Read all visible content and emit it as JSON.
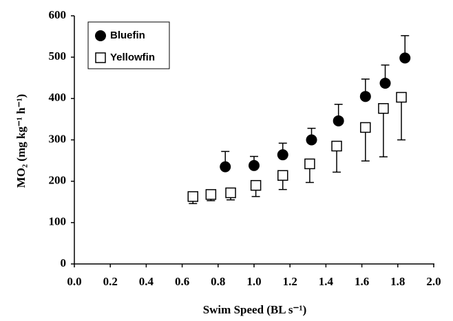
{
  "chart_data": {
    "type": "scatter",
    "xlabel": "Swim Speed (BL s⁻¹)",
    "ylabel": "MO₂ (mg kg⁻¹ h⁻¹)",
    "xlim": [
      0,
      2
    ],
    "ylim": [
      0,
      600
    ],
    "xticks": [
      {
        "value": 0,
        "label": "0.0"
      },
      0.2,
      0.4,
      0.6,
      0.8,
      {
        "value": 1,
        "label": "1.0"
      },
      1.2,
      1.4,
      1.6,
      1.8,
      {
        "value": 2,
        "label": "2.0"
      }
    ],
    "yticks": [
      0,
      100,
      200,
      300,
      400,
      500,
      600
    ],
    "legend": "upper left",
    "series": [
      {
        "name": "Bluefin",
        "color": "#000000",
        "marker": "filled-circle",
        "error_direction": "up",
        "x": [
          0.84,
          1.0,
          1.16,
          1.32,
          1.47,
          1.62,
          1.73,
          1.84
        ],
        "values": [
          235,
          238,
          264,
          300,
          346,
          405,
          437,
          498
        ],
        "errors": [
          37,
          22,
          28,
          28,
          40,
          42,
          44,
          54
        ]
      },
      {
        "name": "Yellowfin",
        "color": "#000000",
        "marker": "open-square",
        "error_direction": "down",
        "x": [
          0.66,
          0.76,
          0.87,
          1.01,
          1.16,
          1.31,
          1.46,
          1.62,
          1.72,
          1.82
        ],
        "values": [
          163,
          168,
          172,
          190,
          214,
          242,
          285,
          330,
          376,
          403
        ],
        "errors": [
          17,
          15,
          17,
          27,
          34,
          45,
          63,
          81,
          117,
          103
        ]
      }
    ]
  }
}
